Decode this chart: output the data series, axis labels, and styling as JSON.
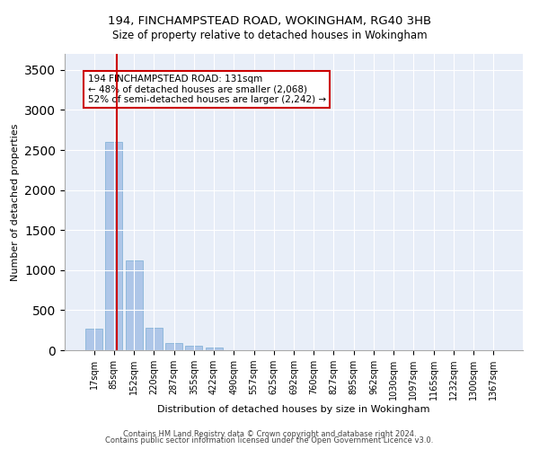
{
  "title1": "194, FINCHAMPSTEAD ROAD, WOKINGHAM, RG40 3HB",
  "title2": "Size of property relative to detached houses in Wokingham",
  "xlabel": "Distribution of detached houses by size in Wokingham",
  "ylabel": "Number of detached properties",
  "bar_labels": [
    "17sqm",
    "85sqm",
    "152sqm",
    "220sqm",
    "287sqm",
    "355sqm",
    "422sqm",
    "490sqm",
    "557sqm",
    "625sqm",
    "692sqm",
    "760sqm",
    "827sqm",
    "895sqm",
    "962sqm",
    "1030sqm",
    "1097sqm",
    "1165sqm",
    "1232sqm",
    "1300sqm",
    "1367sqm"
  ],
  "bar_values": [
    270,
    2600,
    1120,
    280,
    95,
    55,
    35,
    0,
    0,
    0,
    0,
    0,
    0,
    0,
    0,
    0,
    0,
    0,
    0,
    0,
    0
  ],
  "bar_color": "#aec6e8",
  "bar_edge_color": "#7aadd4",
  "vline_color": "#cc0000",
  "annotation_text": "194 FINCHAMPSTEAD ROAD: 131sqm\n← 48% of detached houses are smaller (2,068)\n52% of semi-detached houses are larger (2,242) →",
  "annotation_box_color": "#ffffff",
  "annotation_border_color": "#cc0000",
  "ylim": [
    0,
    3700
  ],
  "yticks": [
    0,
    500,
    1000,
    1500,
    2000,
    2500,
    3000,
    3500
  ],
  "bg_color": "#e8eef8",
  "grid_color": "#ffffff",
  "footer1": "Contains HM Land Registry data © Crown copyright and database right 2024.",
  "footer2": "Contains public sector information licensed under the Open Government Licence v3.0."
}
